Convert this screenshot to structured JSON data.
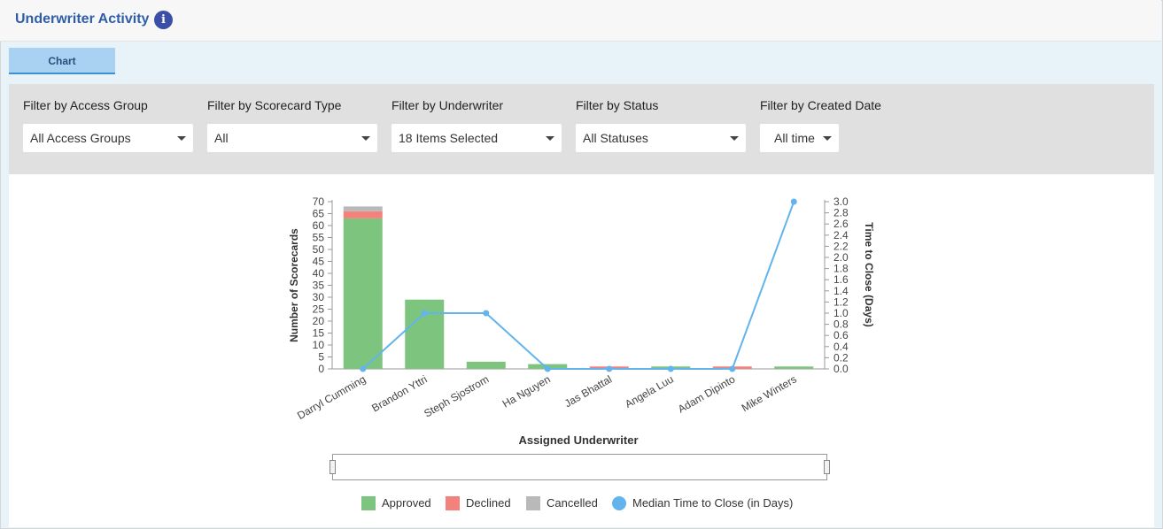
{
  "header": {
    "title": "Underwriter Activity",
    "info_icon": "info-icon"
  },
  "tabs": [
    {
      "label": "Chart"
    }
  ],
  "filters": [
    {
      "label": "Filter by Access Group",
      "value": "All Access Groups"
    },
    {
      "label": "Filter by Scorecard Type",
      "value": "All"
    },
    {
      "label": "Filter by Underwriter",
      "value": "18 Items Selected"
    },
    {
      "label": "Filter by Status",
      "value": "All Statuses"
    },
    {
      "label": "Filter by Created Date",
      "value": "All time"
    }
  ],
  "colors": {
    "approved": "#7dc57e",
    "declined": "#f4827c",
    "cancelled": "#b9b9b9",
    "median": "#63b3ed",
    "title": "#2f5ea8"
  },
  "chart_data": {
    "type": "bar",
    "xlabel": "Assigned Underwriter",
    "ylabel": "Number of Scorecards",
    "y2label": "Time to Close (Days)",
    "ylim": [
      0,
      70
    ],
    "y2lim": [
      0,
      3
    ],
    "yticks": [
      "0",
      "5",
      "10",
      "15",
      "20",
      "25",
      "30",
      "35",
      "40",
      "45",
      "50",
      "55",
      "60",
      "65",
      "70"
    ],
    "y2ticks": [
      "0.0",
      "0.2",
      "0.4",
      "0.6",
      "0.8",
      "1.0",
      "1.2",
      "1.4",
      "1.6",
      "1.8",
      "2.0",
      "2.2",
      "2.4",
      "2.6",
      "2.8",
      "3.0"
    ],
    "categories": [
      "Darryl Cumming",
      "Brandon Yttri",
      "Steph Sjostrom",
      "Ha Nguyen",
      "Jas Bhattal",
      "Angela Luu",
      "Adam Dipinto",
      "Mike Winters"
    ],
    "series": [
      {
        "name": "Approved",
        "kind": "bar",
        "values": [
          63,
          29,
          3,
          2,
          0,
          1,
          0,
          1
        ]
      },
      {
        "name": "Declined",
        "kind": "bar",
        "values": [
          3,
          0,
          0,
          0,
          1,
          0,
          1,
          0
        ]
      },
      {
        "name": "Cancelled",
        "kind": "bar",
        "values": [
          2,
          0,
          0,
          0,
          0,
          0,
          0,
          0
        ]
      },
      {
        "name": "Median Time to Close (in Days)",
        "kind": "line",
        "values": [
          0,
          1,
          1,
          0,
          0,
          0,
          0,
          3
        ]
      }
    ],
    "legend": "bottom"
  }
}
